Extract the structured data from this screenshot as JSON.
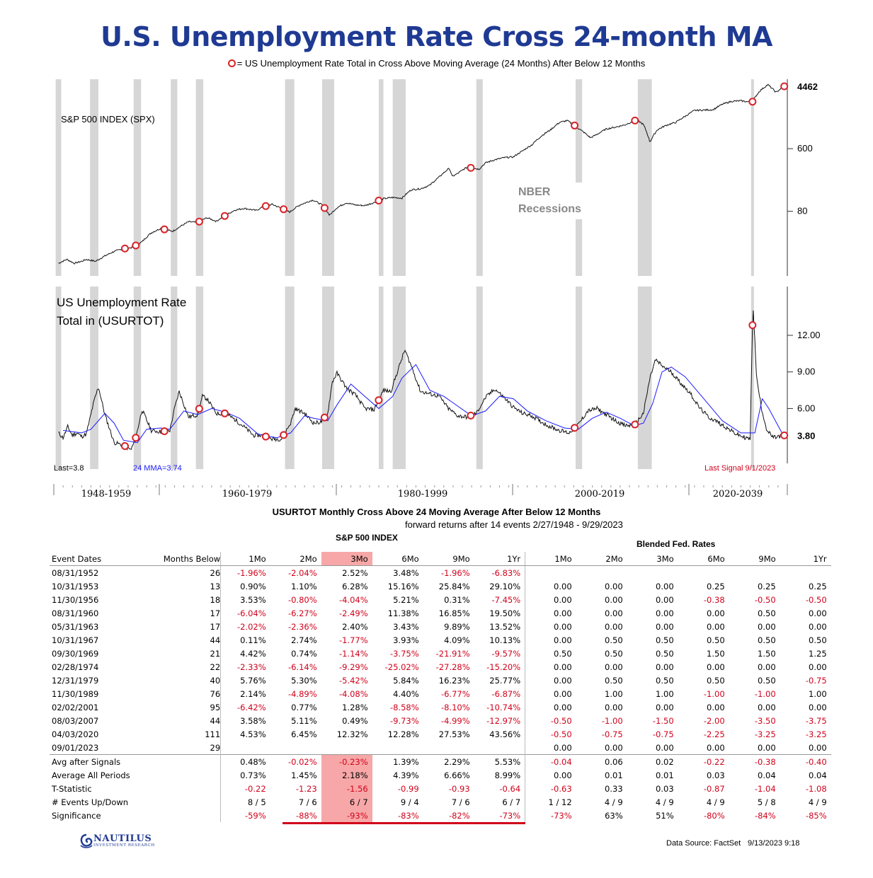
{
  "title": "U.S. Unemployment Rate Cross 24-month MA",
  "subtitle": "= US Unemployment Rate Total in  Cross Above Moving Average (24 Months) After Below 12 Months",
  "chart_data": [
    {
      "type": "line",
      "panel": "top",
      "title": "S&P 500 INDEX (SPX)",
      "scale": "log",
      "yticks": [
        80,
        600
      ],
      "last_value_label": "4462",
      "annotation": "NBER Recessions",
      "series": [
        {
          "name": "S&P 500 INDEX (SPX)",
          "x": [
            1945.5,
            1946.4,
            1947.2,
            1948.0,
            1948.5,
            1949.5,
            1950.5,
            1951.5,
            1952.5,
            1953.5,
            1954.5,
            1955.5,
            1956.5,
            1957.8,
            1958.5,
            1959.5,
            1960.5,
            1961.5,
            1962.5,
            1963.5,
            1964.5,
            1965.5,
            1966.8,
            1967.5,
            1968.5,
            1970.4,
            1971.5,
            1972.9,
            1973.9,
            1974.7,
            1975.5,
            1976.5,
            1977.5,
            1978.5,
            1979.5,
            1980.5,
            1981.5,
            1982.5,
            1983.5,
            1984.5,
            1985.5,
            1986.5,
            1987.6,
            1987.9,
            1988.5,
            1989.5,
            1990.8,
            1991.5,
            1992.5,
            1993.5,
            1994.5,
            1995.5,
            1996.5,
            1997.5,
            1998.5,
            1999.5,
            2000.3,
            2001.5,
            2002.8,
            2003.5,
            2004.5,
            2005.5,
            2006.5,
            2007.8,
            2008.5,
            2009.2,
            2010.0,
            2011.0,
            2012.0,
            2013.0,
            2014.0,
            2015.0,
            2016.0,
            2017.0,
            2018.0,
            2019.0,
            2020.2,
            2021.0,
            2021.9,
            2022.8,
            2023.6
          ],
          "y": [
            15,
            17,
            15,
            16,
            17,
            16,
            19,
            22,
            24,
            25,
            30,
            40,
            46,
            42,
            48,
            57,
            56,
            65,
            58,
            70,
            83,
            88,
            82,
            92,
            100,
            78,
            98,
            115,
            98,
            70,
            90,
            105,
            98,
            96,
            106,
            120,
            125,
            122,
            160,
            165,
            185,
            240,
            320,
            245,
            270,
            330,
            310,
            380,
            420,
            450,
            460,
            560,
            680,
            900,
            1100,
            1400,
            1480,
            1150,
            850,
            950,
            1130,
            1200,
            1290,
            1520,
            1300,
            740,
            1100,
            1280,
            1400,
            1700,
            2050,
            2080,
            2100,
            2500,
            2750,
            2800,
            2650,
            3800,
            4700,
            3650,
            4462
          ]
        }
      ]
    },
    {
      "type": "line",
      "panel": "bottom",
      "title": "US Unemployment Rate Total in (USURTOT)",
      "yticks": [
        6.0,
        9.0,
        12.0
      ],
      "last_value_label": "3.80",
      "last_label": "Last=3.8",
      "ma_label": "24 MMA=3.74",
      "last_signal_label": "Last Signal 9/1/2023",
      "series": [
        {
          "name": "US Unemployment Rate Total in (USURTOT)",
          "x": [
            1945.5,
            1946.0,
            1946.5,
            1947.0,
            1947.5,
            1948.0,
            1948.5,
            1949.3,
            1949.8,
            1950.5,
            1951.5,
            1952.5,
            1953.3,
            1953.8,
            1954.5,
            1955.5,
            1956.5,
            1957.5,
            1958.0,
            1958.5,
            1959.5,
            1960.5,
            1961.0,
            1961.5,
            1962.5,
            1963.5,
            1964.5,
            1965.5,
            1966.5,
            1967.5,
            1968.5,
            1969.5,
            1970.5,
            1971.0,
            1972.0,
            1973.0,
            1973.8,
            1974.5,
            1975.0,
            1975.5,
            1976.5,
            1977.5,
            1978.5,
            1979.5,
            1980.5,
            1981.3,
            1982.0,
            1982.8,
            1983.5,
            1984.5,
            1985.5,
            1986.5,
            1987.5,
            1988.5,
            1989.5,
            1990.5,
            1991.5,
            1992.5,
            1993.5,
            1994.5,
            1995.5,
            1996.5,
            1997.5,
            1998.5,
            1999.5,
            2000.5,
            2001.5,
            2002.5,
            2003.5,
            2004.5,
            2005.5,
            2006.5,
            2007.5,
            2008.5,
            2009.2,
            2009.8,
            2010.5,
            2011.5,
            2012.5,
            2013.5,
            2014.5,
            2015.5,
            2016.5,
            2017.5,
            2018.5,
            2019.5,
            2020.0,
            2020.3,
            2020.7,
            2021.2,
            2021.8,
            2022.5,
            2023.6
          ],
          "y": [
            4.0,
            3.6,
            4.5,
            3.8,
            4.0,
            3.7,
            3.9,
            6.5,
            7.8,
            5.5,
            3.2,
            3.0,
            2.6,
            3.5,
            5.9,
            4.2,
            4.1,
            4.2,
            6.0,
            7.4,
            5.3,
            5.5,
            7.0,
            6.8,
            5.6,
            5.6,
            5.1,
            4.5,
            3.8,
            3.8,
            3.5,
            3.5,
            4.8,
            6.0,
            5.6,
            4.8,
            4.9,
            5.6,
            8.2,
            8.9,
            7.7,
            7.1,
            6.0,
            5.9,
            7.5,
            7.4,
            9.0,
            10.8,
            9.5,
            7.4,
            7.2,
            7.0,
            6.0,
            5.4,
            5.3,
            5.6,
            6.9,
            7.6,
            6.9,
            6.1,
            5.6,
            5.4,
            4.9,
            4.5,
            4.2,
            4.0,
            4.7,
            5.8,
            6.0,
            5.5,
            5.0,
            4.6,
            4.6,
            5.6,
            8.5,
            10.0,
            9.5,
            9.0,
            8.1,
            7.3,
            6.1,
            5.3,
            4.9,
            4.4,
            3.9,
            3.6,
            3.5,
            14.7,
            8.4,
            6.1,
            4.2,
            3.6,
            3.8
          ]
        },
        {
          "name": "24 MMA",
          "x": [
            1946.0,
            1948.0,
            1949.0,
            1950.5,
            1951.5,
            1952.5,
            1954.0,
            1955.0,
            1956.5,
            1957.5,
            1959.0,
            1960.5,
            1962.0,
            1963.5,
            1965.0,
            1967.0,
            1969.0,
            1970.5,
            1972.0,
            1973.0,
            1974.5,
            1975.5,
            1977.0,
            1978.5,
            1980.0,
            1981.5,
            1982.5,
            1984.0,
            1985.5,
            1987.0,
            1988.5,
            1990.0,
            1991.5,
            1993.0,
            1994.5,
            1996.0,
            1998.0,
            2000.0,
            2001.5,
            2003.0,
            2004.5,
            2006.0,
            2007.5,
            2008.5,
            2009.5,
            2010.5,
            2011.5,
            2013.0,
            2015.0,
            2017.0,
            2019.0,
            2020.5,
            2021.3,
            2022.0,
            2023.6
          ],
          "y": [
            4.2,
            4.0,
            4.3,
            5.6,
            4.8,
            3.4,
            3.2,
            4.3,
            4.4,
            4.3,
            5.8,
            5.5,
            6.0,
            5.7,
            5.2,
            3.9,
            3.6,
            4.0,
            5.4,
            5.2,
            5.0,
            6.3,
            8.0,
            7.0,
            6.0,
            7.0,
            8.5,
            9.6,
            7.5,
            7.0,
            6.2,
            5.4,
            5.8,
            7.0,
            6.8,
            5.8,
            5.0,
            4.4,
            4.3,
            5.2,
            5.7,
            5.2,
            4.6,
            4.8,
            6.4,
            9.0,
            9.4,
            8.6,
            6.8,
            5.0,
            4.0,
            4.0,
            6.8,
            6.0,
            3.74
          ]
        }
      ]
    }
  ],
  "signal_dates": [
    1952.66,
    1953.83,
    1956.91,
    1960.66,
    1963.41,
    1967.83,
    1969.75,
    1974.16,
    1979.99,
    1989.91,
    2001.09,
    2007.59,
    2020.25,
    2023.67
  ],
  "recessions": [
    [
      1945.2,
      1945.8
    ],
    [
      1948.9,
      1949.8
    ],
    [
      1953.6,
      1954.4
    ],
    [
      1957.6,
      1958.3
    ],
    [
      1960.3,
      1961.1
    ],
    [
      1969.9,
      1970.9
    ],
    [
      1973.9,
      1975.2
    ],
    [
      1980.0,
      1980.5
    ],
    [
      1981.5,
      1982.9
    ],
    [
      1990.5,
      1991.2
    ],
    [
      2001.2,
      2001.9
    ],
    [
      2007.9,
      2009.4
    ],
    [
      2020.1,
      2020.4
    ]
  ],
  "x_axis_segments": [
    "1948-1959",
    "1960-1979",
    "1980-1999",
    "2000-2019",
    "2020-2039"
  ],
  "table": {
    "title": "USURTOT Monthly Cross Above 24  Moving Average After Below 12 Months",
    "subtitle": "forward returns after 14 events 2/27/1948 - 9/29/2023",
    "group_left": "S&P 500 INDEX",
    "group_right": "Blended Fed. Rates",
    "columns": [
      "Event Dates",
      "Months Below",
      "1Mo",
      "2Mo",
      "3Mo",
      "6Mo",
      "9Mo",
      "1Yr",
      "1Mo",
      "2Mo",
      "3Mo",
      "6Mo",
      "9Mo",
      "1Yr"
    ],
    "rows": [
      [
        "08/31/1952",
        "26",
        "-1.96%",
        "-2.04%",
        "2.52%",
        "3.48%",
        "-1.96%",
        "-6.83%",
        "",
        "",
        "",
        "",
        "",
        ""
      ],
      [
        "10/31/1953",
        "13",
        "0.90%",
        "1.10%",
        "6.28%",
        "15.16%",
        "25.84%",
        "29.10%",
        "0.00",
        "0.00",
        "0.00",
        "0.25",
        "0.25",
        "0.25"
      ],
      [
        "11/30/1956",
        "18",
        "3.53%",
        "-0.80%",
        "-4.04%",
        "5.21%",
        "0.31%",
        "-7.45%",
        "0.00",
        "0.00",
        "0.00",
        "-0.38",
        "-0.50",
        "-0.50"
      ],
      [
        "08/31/1960",
        "17",
        "-6.04%",
        "-6.27%",
        "-2.49%",
        "11.38%",
        "16.85%",
        "19.50%",
        "0.00",
        "0.00",
        "0.00",
        "0.00",
        "0.50",
        "0.00"
      ],
      [
        "05/31/1963",
        "17",
        "-2.02%",
        "-2.36%",
        "2.40%",
        "3.43%",
        "9.89%",
        "13.52%",
        "0.00",
        "0.00",
        "0.00",
        "0.00",
        "0.00",
        "0.00"
      ],
      [
        "10/31/1967",
        "44",
        "0.11%",
        "2.74%",
        "-1.77%",
        "3.93%",
        "4.09%",
        "10.13%",
        "0.00",
        "0.50",
        "0.50",
        "0.50",
        "0.50",
        "0.50"
      ],
      [
        "09/30/1969",
        "21",
        "4.42%",
        "0.74%",
        "-1.14%",
        "-3.75%",
        "-21.91%",
        "-9.57%",
        "0.50",
        "0.50",
        "0.50",
        "1.50",
        "1.50",
        "1.25"
      ],
      [
        "02/28/1974",
        "22",
        "-2.33%",
        "-6.14%",
        "-9.29%",
        "-25.02%",
        "-27.28%",
        "-15.20%",
        "0.00",
        "0.00",
        "0.00",
        "0.00",
        "0.00",
        "0.00"
      ],
      [
        "12/31/1979",
        "40",
        "5.76%",
        "5.30%",
        "-5.42%",
        "5.84%",
        "16.23%",
        "25.77%",
        "0.00",
        "0.50",
        "0.50",
        "0.50",
        "0.50",
        "-0.75"
      ],
      [
        "11/30/1989",
        "76",
        "2.14%",
        "-4.89%",
        "-4.08%",
        "4.40%",
        "-6.77%",
        "-6.87%",
        "0.00",
        "1.00",
        "1.00",
        "-1.00",
        "-1.00",
        "1.00"
      ],
      [
        "02/02/2001",
        "95",
        "-6.42%",
        "0.77%",
        "1.28%",
        "-8.58%",
        "-8.10%",
        "-10.74%",
        "0.00",
        "0.00",
        "0.00",
        "0.00",
        "0.00",
        "0.00"
      ],
      [
        "08/03/2007",
        "44",
        "3.58%",
        "5.11%",
        "0.49%",
        "-9.73%",
        "-4.99%",
        "-12.97%",
        "-0.50",
        "-1.00",
        "-1.50",
        "-2.00",
        "-3.50",
        "-3.75"
      ],
      [
        "04/03/2020",
        "111",
        "4.53%",
        "6.45%",
        "12.32%",
        "12.28%",
        "27.53%",
        "43.56%",
        "-0.50",
        "-0.75",
        "-0.75",
        "-2.25",
        "-3.25",
        "-3.25"
      ],
      [
        "09/01/2023",
        "29",
        "",
        "",
        "",
        "",
        "",
        "",
        "0.00",
        "0.00",
        "0.00",
        "0.00",
        "0.00",
        "0.00"
      ]
    ],
    "summary": [
      [
        "Avg after Signals",
        "",
        "0.48%",
        "-0.02%",
        "-0.23%",
        "1.39%",
        "2.29%",
        "5.53%",
        "-0.04",
        "0.06",
        "0.02",
        "-0.22",
        "-0.38",
        "-0.40"
      ],
      [
        "Average All Periods",
        "",
        "0.73%",
        "1.45%",
        "2.18%",
        "4.39%",
        "6.66%",
        "8.99%",
        "0.00",
        "0.01",
        "0.01",
        "0.03",
        "0.04",
        "0.04"
      ],
      [
        "T-Statistic",
        "",
        "-0.22",
        "-1.23",
        "-1.56",
        "-0.99",
        "-0.93",
        "-0.64",
        "-0.63",
        "0.33",
        "0.03",
        "-0.87",
        "-1.04",
        "-1.08"
      ],
      [
        "# Events Up/Down",
        "",
        "8 / 5",
        "7 / 6",
        "6 / 7",
        "9 / 4",
        "7 / 6",
        "6 / 7",
        "1 / 12",
        "4 / 9",
        "4 / 9",
        "4 / 9",
        "5 / 8",
        "4 / 9"
      ],
      [
        "Significance",
        "",
        "-59%",
        "-88%",
        "-93%",
        "-83%",
        "-82%",
        "-73%",
        "-73%",
        "63%",
        "51%",
        "-80%",
        "-84%",
        "-85%"
      ]
    ]
  },
  "footer": {
    "logo_main": "NAUTILUS",
    "logo_sub": "INVESTMENT RESEARCH",
    "source": "Data Source: FactSet",
    "stamp": "9/13/2023 9:18"
  },
  "colors": {
    "title": "#1f3a93",
    "ma_line": "#1a1aff",
    "marker": "#d8232a",
    "negative": "#d0021b",
    "highlight": "#f7a7a7",
    "recession": "#d6d6d6"
  }
}
